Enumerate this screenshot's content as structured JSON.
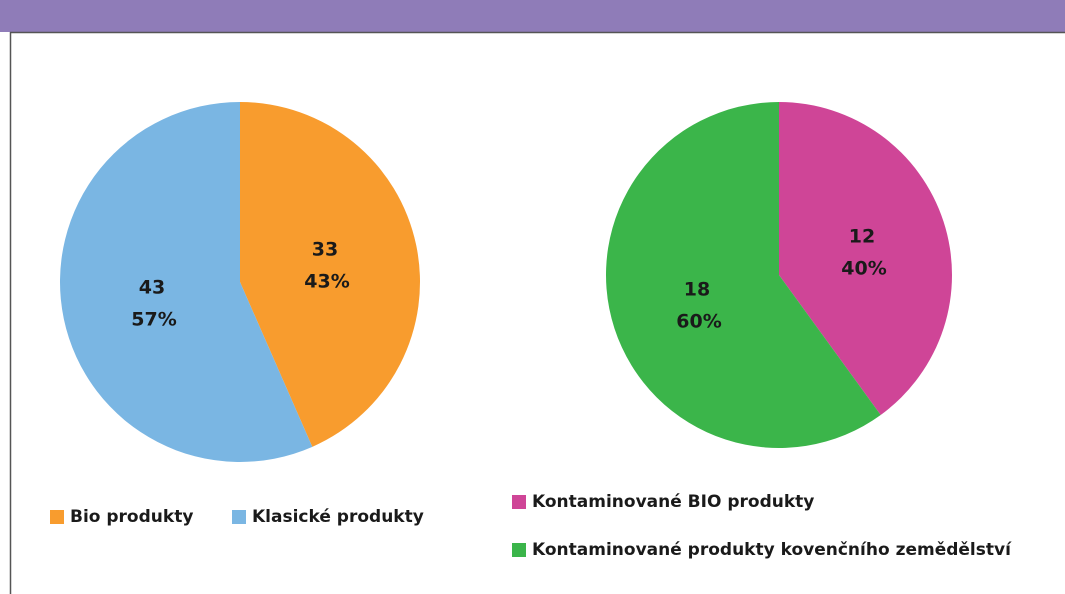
{
  "chart_data": [
    {
      "type": "pie",
      "categories": [
        "Bio produkty",
        "Klasické produkty"
      ],
      "values": [
        33,
        43
      ],
      "percent_labels": [
        "43%",
        "57%"
      ],
      "colors": [
        "#f89c2e",
        "#7ab6e3"
      ]
    },
    {
      "type": "pie",
      "categories": [
        "Kontaminované BIO produkty",
        "Kontaminované produkty kovenčního zemědělství"
      ],
      "values": [
        12,
        18
      ],
      "percent_labels": [
        "40%",
        "60%"
      ],
      "colors": [
        "#cf4597",
        "#3bb54a"
      ]
    }
  ]
}
